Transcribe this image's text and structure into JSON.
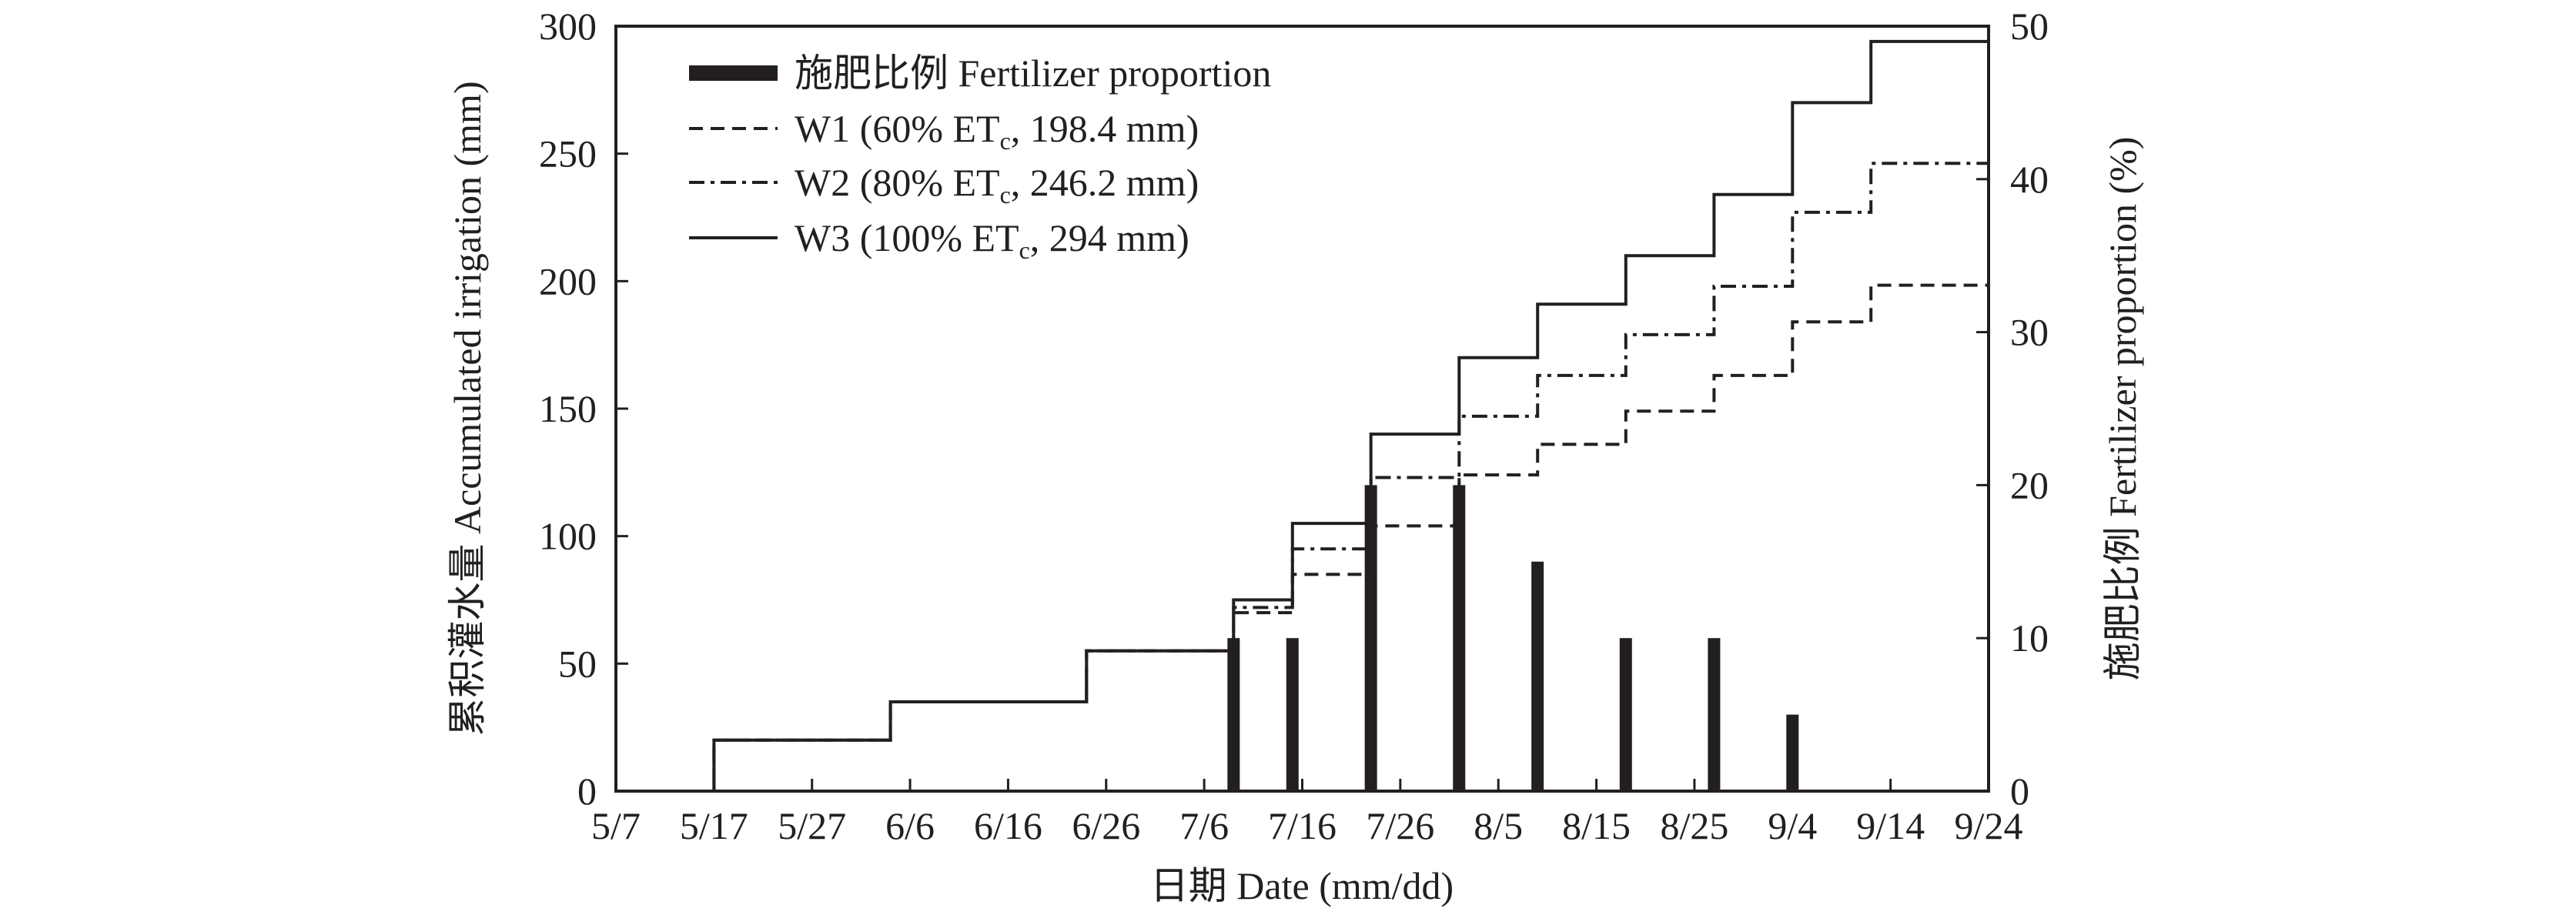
{
  "chart_data": {
    "type": "line",
    "xlabel": "日期 Date (mm/dd)",
    "ylabel_left": "累积灌水量 Accumulated irrigation (mm)",
    "ylabel_right": "施肥比例 Fertilizer proportion (%)",
    "ylim_left": [
      0,
      300
    ],
    "ylim_right": [
      0,
      50
    ],
    "x_start": "5/7",
    "x_end": "9/24",
    "x_ticks": [
      "5/7",
      "5/17",
      "5/27",
      "6/6",
      "6/16",
      "6/26",
      "7/6",
      "7/16",
      "7/26",
      "8/5",
      "8/15",
      "8/25",
      "9/4",
      "9/14",
      "9/24"
    ],
    "y_ticks_left": [
      "0",
      "50",
      "100",
      "150",
      "200",
      "250",
      "300"
    ],
    "y_ticks_right": [
      "0",
      "10",
      "20",
      "30",
      "40",
      "50"
    ],
    "legend_position": "top-left",
    "series": [
      {
        "name": "施肥比例 Fertilizer proportion",
        "kind": "bar",
        "axis": "right",
        "x": [
          "7/9",
          "7/15",
          "7/23",
          "8/1",
          "8/9",
          "8/18",
          "8/27",
          "9/4"
        ],
        "values": [
          10,
          10,
          20,
          20,
          15,
          10,
          10,
          5
        ]
      },
      {
        "name": "W1 (60% ETc, 198.4 mm)",
        "label_parts": [
          "W1 (60% ET",
          "c",
          ", 198.4 mm)"
        ],
        "kind": "step",
        "dash": "dashed",
        "axis": "left",
        "points": [
          [
            "5/7",
            0
          ],
          [
            "5/17",
            20
          ],
          [
            "6/4",
            35
          ],
          [
            "6/24",
            55
          ],
          [
            "7/9",
            70
          ],
          [
            "7/15",
            85
          ],
          [
            "7/23",
            104
          ],
          [
            "8/1",
            124
          ],
          [
            "8/9",
            136
          ],
          [
            "8/18",
            149
          ],
          [
            "8/27",
            163
          ],
          [
            "9/4",
            184
          ],
          [
            "9/12",
            198.4
          ],
          [
            "9/24",
            198.4
          ]
        ]
      },
      {
        "name": "W2 (80% ETc, 246.2 mm)",
        "label_parts": [
          "W2 (80% ET",
          "c",
          ", 246.2 mm)"
        ],
        "kind": "step",
        "dash": "dash-dot",
        "axis": "left",
        "points": [
          [
            "5/7",
            0
          ],
          [
            "5/17",
            20
          ],
          [
            "6/4",
            35
          ],
          [
            "6/24",
            55
          ],
          [
            "7/9",
            72
          ],
          [
            "7/15",
            95
          ],
          [
            "7/23",
            123
          ],
          [
            "8/1",
            147
          ],
          [
            "8/9",
            163
          ],
          [
            "8/18",
            179
          ],
          [
            "8/27",
            198
          ],
          [
            "9/4",
            227
          ],
          [
            "9/12",
            246.2
          ],
          [
            "9/24",
            246.2
          ]
        ]
      },
      {
        "name": "W3 (100% ETc, 294 mm)",
        "label_parts": [
          "W3 (100% ET",
          "c",
          ", 294 mm)"
        ],
        "kind": "step",
        "dash": "solid",
        "axis": "left",
        "points": [
          [
            "5/7",
            0
          ],
          [
            "5/17",
            20
          ],
          [
            "6/4",
            35
          ],
          [
            "6/24",
            55
          ],
          [
            "7/9",
            75
          ],
          [
            "7/15",
            105
          ],
          [
            "7/23",
            140
          ],
          [
            "8/1",
            170
          ],
          [
            "8/9",
            191
          ],
          [
            "8/18",
            210
          ],
          [
            "8/27",
            234
          ],
          [
            "9/4",
            270
          ],
          [
            "9/12",
            294
          ],
          [
            "9/24",
            294
          ]
        ]
      }
    ]
  }
}
